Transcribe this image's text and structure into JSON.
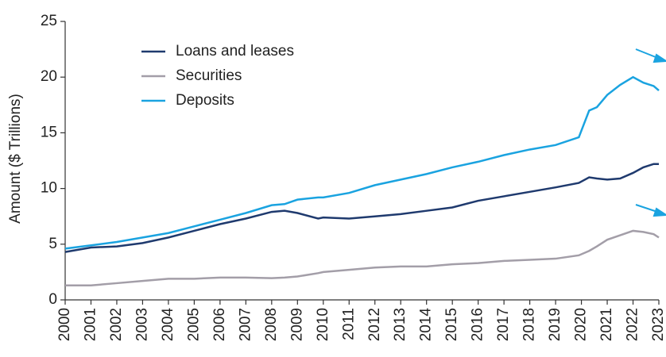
{
  "chart_data": {
    "type": "line",
    "ylabel": "Amount ($ Trillions)",
    "x": [
      2000,
      2001,
      2002,
      2003,
      2004,
      2005,
      2006,
      2007,
      2008,
      2008.5,
      2009,
      2009.8,
      2010,
      2011,
      2012,
      2013,
      2014,
      2015,
      2016,
      2017,
      2018,
      2019,
      2019.9,
      2020.3,
      2020.6,
      2021,
      2021.5,
      2022,
      2022.4,
      2022.8,
      2023
    ],
    "series": [
      {
        "name": "Loans and leases",
        "color": "#1f3a6e",
        "values": [
          4.3,
          4.7,
          4.8,
          5.1,
          5.6,
          6.2,
          6.8,
          7.3,
          7.9,
          8.0,
          7.8,
          7.3,
          7.4,
          7.3,
          7.5,
          7.7,
          8.0,
          8.3,
          8.9,
          9.3,
          9.7,
          10.1,
          10.5,
          11.0,
          10.9,
          10.8,
          10.9,
          11.4,
          11.9,
          12.2,
          12.2
        ]
      },
      {
        "name": "Securities",
        "color": "#a39ea8",
        "values": [
          1.3,
          1.3,
          1.5,
          1.7,
          1.9,
          1.9,
          2.0,
          2.0,
          1.95,
          2.0,
          2.1,
          2.4,
          2.5,
          2.7,
          2.9,
          3.0,
          3.0,
          3.2,
          3.3,
          3.5,
          3.6,
          3.7,
          4.0,
          4.4,
          4.8,
          5.4,
          5.8,
          6.2,
          6.1,
          5.9,
          5.6
        ]
      },
      {
        "name": "Deposits",
        "color": "#1aa3e0",
        "values": [
          4.6,
          4.9,
          5.2,
          5.6,
          6.0,
          6.6,
          7.2,
          7.8,
          8.5,
          8.6,
          9.0,
          9.2,
          9.2,
          9.6,
          10.3,
          10.8,
          11.3,
          11.9,
          12.4,
          13.0,
          13.5,
          13.9,
          14.6,
          17.0,
          17.3,
          18.4,
          19.3,
          20.0,
          19.5,
          19.2,
          18.8
        ]
      }
    ],
    "xlim": [
      2000,
      2023
    ],
    "xticks": [
      2000,
      2001,
      2002,
      2003,
      2004,
      2005,
      2006,
      2007,
      2008,
      2009,
      2010,
      2011,
      2012,
      2013,
      2014,
      2015,
      2016,
      2017,
      2018,
      2019,
      2020,
      2021,
      2022,
      2023
    ],
    "ylim": [
      0,
      25
    ],
    "yticks": [
      0,
      5,
      10,
      15,
      20,
      25
    ],
    "legend": "upper left"
  }
}
